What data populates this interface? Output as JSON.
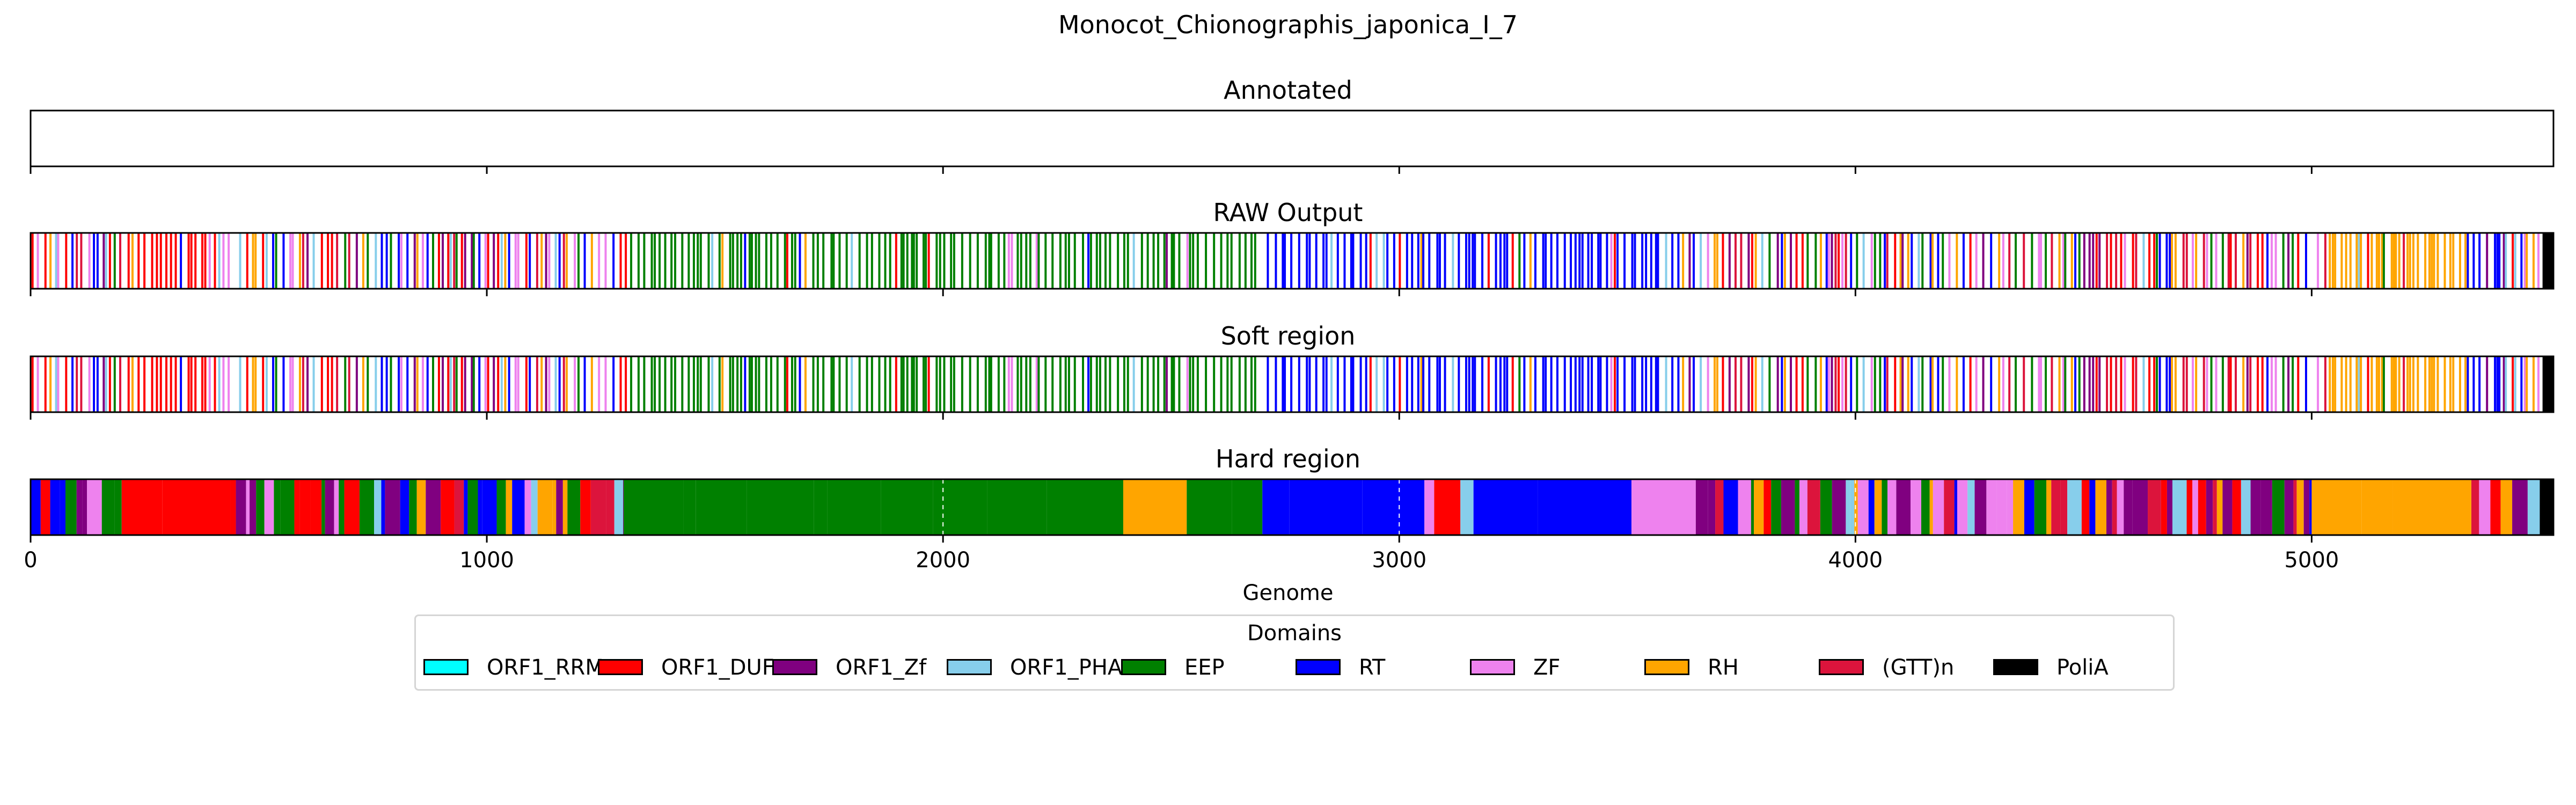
{
  "title": "Monocot_Chionographis_japonica_I_7",
  "chart_data": {
    "type": "track",
    "title": "Monocot_Chionographis_japonica_I_7",
    "xlabel": "Genome",
    "xlim": [
      0,
      5530
    ],
    "xticks": [
      0,
      1000,
      2000,
      3000,
      4000,
      5000
    ],
    "tracks": [
      {
        "title": "Annotated",
        "style": "empty"
      },
      {
        "title": "RAW Output",
        "style": "lines"
      },
      {
        "title": "Soft region",
        "style": "lines"
      },
      {
        "title": "Hard region",
        "style": "blocks"
      }
    ],
    "domains": [
      {
        "name": "ORF1_RRM",
        "color": "#00FFFF"
      },
      {
        "name": "ORF1_DUF",
        "color": "#FF0000"
      },
      {
        "name": "ORF1_Zf",
        "color": "#800080"
      },
      {
        "name": "ORF1_PHA",
        "color": "#87CEEB"
      },
      {
        "name": "EEP",
        "color": "#008000"
      },
      {
        "name": "RT",
        "color": "#0000FF"
      },
      {
        "name": "ZF",
        "color": "#EE82EE"
      },
      {
        "name": "RH",
        "color": "#FFA500"
      },
      {
        "name": "(GTT)n",
        "color": "#DC143C"
      },
      {
        "name": "PoliA",
        "color": "#000000"
      }
    ],
    "legend": {
      "title": "Domains",
      "position": "bottom-center",
      "ncol": 10
    },
    "dominant_regions": [
      {
        "start": 0,
        "end": 200,
        "domain": "mixed"
      },
      {
        "start": 200,
        "end": 450,
        "domain": "ORF1_DUF"
      },
      {
        "start": 450,
        "end": 1300,
        "domain": "mixed"
      },
      {
        "start": 1300,
        "end": 2700,
        "domain": "EEP"
      },
      {
        "start": 2700,
        "end": 3650,
        "domain": "RT"
      },
      {
        "start": 3650,
        "end": 4450,
        "domain": "mixed"
      },
      {
        "start": 4450,
        "end": 5000,
        "domain": "mixed"
      },
      {
        "start": 5000,
        "end": 5350,
        "domain": "RH"
      },
      {
        "start": 5350,
        "end": 5500,
        "domain": "mixed"
      },
      {
        "start": 5500,
        "end": 5530,
        "domain": "PoliA"
      }
    ]
  }
}
